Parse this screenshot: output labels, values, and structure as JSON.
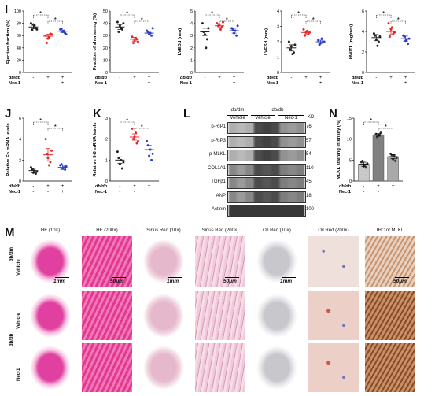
{
  "panel_letters": [
    "I",
    "J",
    "K",
    "L",
    "M",
    "N"
  ],
  "group_labels": {
    "dbdb": "db/db",
    "nec1": "Nec-1",
    "dbdm": "db/dm"
  },
  "group_signs": {
    "dbdb": [
      "-",
      "+",
      "+"
    ],
    "nec1": [
      "-",
      "-",
      "+"
    ]
  },
  "sig_mark": "*",
  "colors": {
    "ctrl": "#222222",
    "dbdb": "#e8262a",
    "nec1": "#2a3fc8",
    "bar_ctrl": "#c8c8c8",
    "bar_db": "#808080",
    "bar_nec": "#a9a9a9"
  },
  "chart_data": [
    {
      "id": "ef",
      "type": "scatter",
      "ylabel": "Ejection fraction (%)",
      "ylim": [
        0,
        100
      ],
      "yticks": [
        0,
        20,
        40,
        60,
        80,
        100
      ],
      "groups": [
        {
          "mean": 74,
          "sem": 3,
          "points": [
            80,
            78,
            72,
            69,
            76,
            70
          ]
        },
        {
          "mean": 59,
          "sem": 3,
          "points": [
            60,
            55,
            63,
            48,
            57,
            62
          ]
        },
        {
          "mean": 67,
          "sem": 2,
          "points": [
            70,
            66,
            64,
            71,
            67,
            62
          ]
        }
      ]
    },
    {
      "id": "fs",
      "type": "scatter",
      "ylabel": "Fraction of shortening (%)",
      "ylim": [
        0,
        50
      ],
      "yticks": [
        0,
        10,
        20,
        30,
        40,
        50
      ],
      "groups": [
        {
          "mean": 37,
          "sem": 2,
          "points": [
            41,
            38,
            35,
            33,
            36,
            40
          ]
        },
        {
          "mean": 27,
          "sem": 1.5,
          "points": [
            29,
            26,
            27,
            24,
            28,
            25
          ]
        },
        {
          "mean": 32,
          "sem": 1.5,
          "points": [
            34,
            31,
            30,
            33,
            32,
            36
          ]
        }
      ]
    },
    {
      "id": "lved",
      "type": "scatter",
      "ylabel": "LVEDd (mm)",
      "ylim": [
        0,
        5
      ],
      "yticks": [
        0,
        1,
        2,
        3,
        4,
        5
      ],
      "groups": [
        {
          "mean": 3.3,
          "sem": 0.3,
          "points": [
            4.0,
            3.1,
            2.7,
            3.3,
            2.0,
            3.6
          ]
        },
        {
          "mean": 3.8,
          "sem": 0.15,
          "points": [
            4.0,
            3.9,
            3.7,
            3.8,
            3.5,
            4.1
          ]
        },
        {
          "mean": 3.4,
          "sem": 0.2,
          "points": [
            3.6,
            3.2,
            3.0,
            3.5,
            3.4,
            3.8
          ]
        }
      ]
    },
    {
      "id": "lves",
      "type": "scatter",
      "ylabel": "LVESd (mm)",
      "ylim": [
        0,
        4
      ],
      "yticks": [
        0,
        1,
        2,
        3,
        4
      ],
      "groups": [
        {
          "mean": 1.6,
          "sem": 0.2,
          "points": [
            2.0,
            1.7,
            1.3,
            1.5,
            1.2,
            1.8
          ]
        },
        {
          "mean": 2.6,
          "sem": 0.1,
          "points": [
            2.8,
            2.6,
            2.5,
            2.4,
            2.7,
            2.6
          ]
        },
        {
          "mean": 2.0,
          "sem": 0.1,
          "points": [
            2.1,
            1.9,
            2.0,
            1.8,
            2.2,
            2.0
          ]
        }
      ]
    },
    {
      "id": "hwtl",
      "type": "scatter",
      "ylabel": "HW/TL (mg/mm)",
      "ylim": [
        0,
        6
      ],
      "yticks": [
        0,
        2,
        4,
        6
      ],
      "groups": [
        {
          "mean": 3.4,
          "sem": 0.3,
          "points": [
            3.8,
            3.2,
            3.0,
            3.6,
            2.6,
            3.5
          ]
        },
        {
          "mean": 4.0,
          "sem": 0.3,
          "points": [
            4.8,
            4.2,
            3.8,
            3.5,
            4.4,
            3.9
          ]
        },
        {
          "mean": 3.3,
          "sem": 0.25,
          "points": [
            3.6,
            3.1,
            2.8,
            3.5,
            3.2,
            3.3
          ]
        }
      ]
    },
    {
      "id": "fn",
      "type": "scatter",
      "ylabel": "Relative Fn mRNA levels",
      "ylim": [
        0,
        6
      ],
      "yticks": [
        0,
        2,
        4,
        6
      ],
      "groups": [
        {
          "mean": 1.0,
          "sem": 0.2,
          "points": [
            1.3,
            0.8,
            0.7,
            1.1,
            1.0,
            0.9
          ]
        },
        {
          "mean": 2.5,
          "sem": 0.6,
          "points": [
            4.0,
            2.2,
            1.8,
            2.6,
            1.5,
            2.9
          ]
        },
        {
          "mean": 1.3,
          "sem": 0.2,
          "points": [
            1.5,
            1.2,
            1.1,
            1.6,
            1.3,
            1.4
          ]
        }
      ]
    },
    {
      "id": "il6",
      "type": "scatter",
      "ylabel": "Relative Il-6 mRNA levels",
      "ylim": [
        0,
        3
      ],
      "yticks": [
        0,
        1,
        2,
        3
      ],
      "groups": [
        {
          "mean": 1.0,
          "sem": 0.15,
          "points": [
            1.4,
            0.8,
            0.6,
            1.1,
            1.0,
            0.9
          ]
        },
        {
          "mean": 2.1,
          "sem": 0.15,
          "points": [
            2.5,
            2.1,
            1.8,
            2.0,
            2.3,
            1.9
          ]
        },
        {
          "mean": 1.5,
          "sem": 0.2,
          "points": [
            1.9,
            1.2,
            1.0,
            1.7,
            1.5,
            1.3
          ]
        }
      ]
    },
    {
      "id": "mlkl",
      "type": "bar",
      "ylabel": "MLKL staining intensity (%)",
      "ylim": [
        0,
        15
      ],
      "yticks": [
        0,
        5,
        10,
        15
      ],
      "groups": [
        {
          "mean": 4,
          "sem": 0.5,
          "points": [
            4.5,
            3.5,
            3.2,
            4.8,
            3.9,
            4.2
          ]
        },
        {
          "mean": 11,
          "sem": 0.3,
          "points": [
            11.2,
            10.8,
            11.5,
            10.5,
            11.0
          ]
        },
        {
          "mean": 5.8,
          "sem": 0.5,
          "points": [
            6.5,
            5.2,
            4.8,
            6.2,
            6.0,
            5.5
          ]
        }
      ]
    }
  ],
  "western": {
    "header_dbdm": "db/dm",
    "header_dbdb": "db/db",
    "col_vehicle1": "Vehicle",
    "col_vehicle2": "Vehicle",
    "col_nec": "Nec-1",
    "kd_label": "KD",
    "rows": [
      {
        "label": "p-RIP1",
        "kd": "76"
      },
      {
        "label": "p-RIP3",
        "kd": "57"
      },
      {
        "label": "p-MLKL",
        "kd": "54"
      },
      {
        "label": "COL1A1",
        "kd": "110"
      },
      {
        "label": "TGFβ1",
        "kd": "45"
      },
      {
        "label": "ANP",
        "kd": "18"
      },
      {
        "label": "Actinin",
        "kd": "100"
      }
    ]
  },
  "micro": {
    "headers": [
      "HE (10×)",
      "HE (200×)",
      "Sirius Red (10×)",
      "Sirius Red (200×)",
      "Oil Red (10×)",
      "Oil Red (200×)",
      "IHC of MLKL"
    ],
    "row_labels": [
      "Vehicle",
      "Vehicle",
      "Nec-1"
    ],
    "side_dbdm": "db/dm",
    "side_dbdb": "db/db",
    "scalebars": [
      "1mm",
      "50μm",
      "1mm",
      "50μm",
      "1mm",
      "",
      "50μm"
    ]
  }
}
